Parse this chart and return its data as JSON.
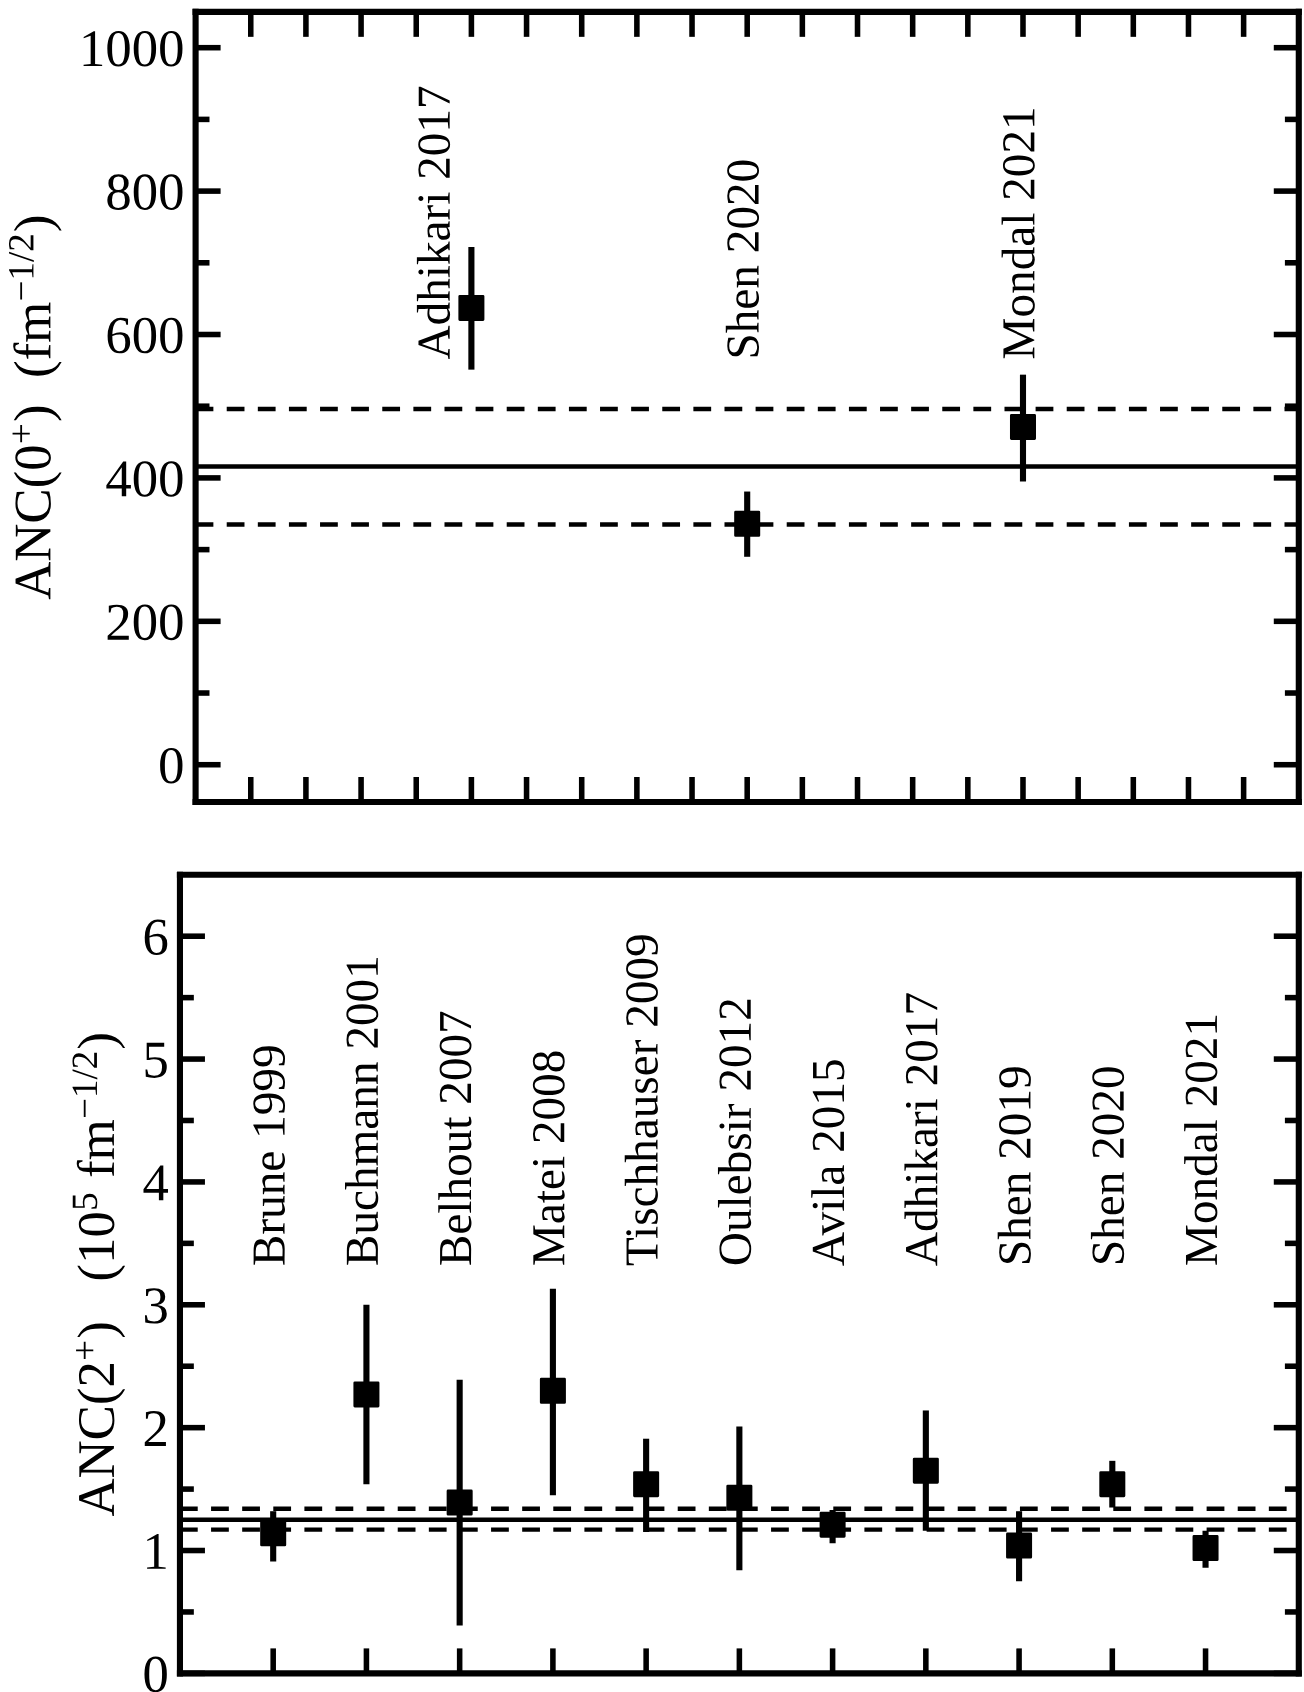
{
  "chart_data": [
    {
      "type": "scatter",
      "ylabel": "ANC(0$^{+}$)  (fm$^{−1/2}$)",
      "categories": [
        null,
        null,
        null,
        null,
        "Adhikari 2017",
        null,
        null,
        null,
        null,
        "Shen 2020",
        null,
        null,
        null,
        null,
        "Mondal 2021",
        null,
        null,
        null,
        null
      ],
      "series": [
        {
          "color": "#000000",
          "values": [
            null,
            null,
            null,
            null,
            637,
            null,
            null,
            null,
            null,
            336,
            null,
            null,
            null,
            null,
            471,
            null,
            null,
            null,
            null
          ],
          "errors": [
            null,
            null,
            null,
            null,
            [
              551,
              722
            ],
            null,
            null,
            null,
            null,
            [
              290,
              381
            ],
            null,
            null,
            null,
            null,
            [
              395,
              544
            ],
            null,
            null,
            null,
            null
          ]
        }
      ],
      "ylim": [
        -52,
        1050
      ],
      "yticks": [
        0,
        {
          "value": 100,
          "label": null
        },
        200,
        {
          "value": 300,
          "label": null
        },
        400,
        {
          "value": 500,
          "label": null
        },
        600,
        {
          "value": 700,
          "label": null
        },
        800,
        {
          "value": 900,
          "label": null
        },
        1000
      ],
      "ref_lines": [
        {
          "axis": "y",
          "value": 416,
          "line_style": "solid",
          "color": "#000000"
        },
        {
          "axis": "y",
          "value": 496,
          "line_style": "dashed",
          "color": "#000000"
        },
        {
          "axis": "y",
          "value": 335,
          "line_style": "dashed",
          "color": "#000000"
        }
      ],
      "marker": "square",
      "grid": false,
      "legend": false,
      "tick_labels": "y"
    },
    {
      "type": "scatter",
      "ylabel": "ANC(2$^{+}$)   (10$^{5}$ fm$^{−1/2}$)",
      "categories": [
        "Brune 1999",
        "Buchmann 2001",
        "Belhout 2007",
        "Matei 2008",
        "Tischhauser 2009",
        "Oulebsir 2012",
        "Avila 2015",
        "Adhikari 2017",
        "Shen 2019",
        "Shen 2020",
        "Mondal 2021"
      ],
      "series": [
        {
          "color": "#000000",
          "values": [
            1.14,
            2.27,
            1.39,
            2.3,
            1.54,
            1.43,
            1.21,
            1.65,
            1.04,
            1.54,
            1.02
          ],
          "errors": [
            [
              0.91,
              1.32
            ],
            [
              1.54,
              3.0
            ],
            [
              0.39,
              2.39
            ],
            [
              1.45,
              3.13
            ],
            [
              1.15,
              1.91
            ],
            [
              0.84,
              2.01
            ],
            [
              1.06,
              1.33
            ],
            [
              1.16,
              2.14
            ],
            [
              0.75,
              1.32
            ],
            [
              1.35,
              1.73
            ],
            [
              0.86,
              1.16
            ]
          ]
        }
      ],
      "ylim": [
        0,
        6.5
      ],
      "yticks": [
        0,
        {
          "value": 0.5,
          "label": null
        },
        1,
        {
          "value": 1.5,
          "label": null
        },
        2,
        {
          "value": 2.5,
          "label": null
        },
        3,
        {
          "value": 3.5,
          "label": null
        },
        4,
        {
          "value": 4.5,
          "label": null
        },
        5,
        {
          "value": 5.5,
          "label": null
        },
        6
      ],
      "ref_lines": [
        {
          "axis": "y",
          "value": 1.25,
          "line_style": "solid",
          "color": "#000000"
        },
        {
          "axis": "y",
          "value": 1.34,
          "line_style": "dashed",
          "color": "#000000"
        },
        {
          "axis": "y",
          "value": 1.17,
          "line_style": "dashed",
          "color": "#000000"
        }
      ],
      "marker": "square",
      "grid": false,
      "legend": false,
      "tick_labels": "y"
    }
  ]
}
